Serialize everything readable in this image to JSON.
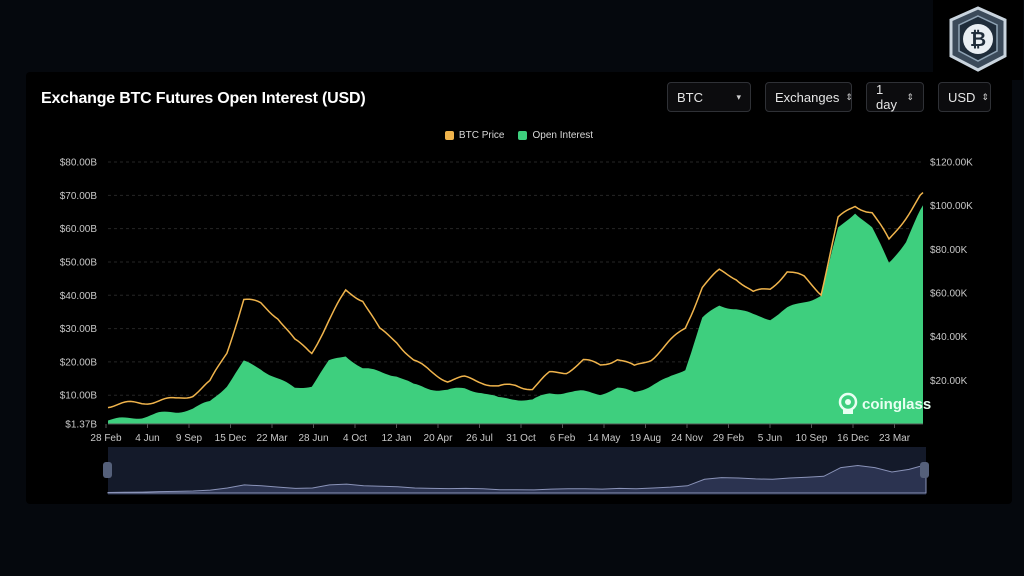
{
  "header": {
    "title": "Exchange BTC Futures Open Interest (USD)",
    "controls": [
      {
        "label": "BTC",
        "icon": "caret-down-icon"
      },
      {
        "label": "Exchanges",
        "icon": "updown-chevron-icon"
      },
      {
        "label": "1 day",
        "icon": "updown-chevron-icon"
      },
      {
        "label": "USD",
        "icon": "updown-chevron-icon"
      }
    ]
  },
  "watermark": {
    "text": "coinglass",
    "icon": "coinglass-logo-icon"
  },
  "logo": {
    "icon": "bitcoin-badge-icon",
    "symbol": "₿"
  },
  "colors": {
    "price": "#f0b44c",
    "oi": "#3ecf7e",
    "background": "#000000",
    "navigator": "#2b3350"
  },
  "chart_data": {
    "type": "area",
    "title": "Exchange BTC Futures Open Interest (USD)",
    "legend_position": "top-center",
    "grid": "horizontal-dashed",
    "x_ticks": [
      "28 Feb",
      "4 Jun",
      "9 Sep",
      "15 Dec",
      "22 Mar",
      "28 Jun",
      "4 Oct",
      "12 Jan",
      "20 Apr",
      "26 Jul",
      "31 Oct",
      "6 Feb",
      "14 May",
      "19 Aug",
      "24 Nov",
      "29 Feb",
      "5 Jun",
      "10 Sep",
      "16 Dec",
      "23 Mar"
    ],
    "y_left_ticks": [
      "$1.37B",
      "$10.00B",
      "$20.00B",
      "$30.00B",
      "$40.00B",
      "$50.00B",
      "$60.00B",
      "$70.00B",
      "$80.00B"
    ],
    "y_left_tick_values": [
      1.37,
      10,
      20,
      30,
      40,
      50,
      60,
      70,
      80
    ],
    "y_left_range": [
      1.37,
      80
    ],
    "y_right_ticks": [
      "$20.00K",
      "$40.00K",
      "$60.00K",
      "$80.00K",
      "$100.00K",
      "$120.00K"
    ],
    "y_right_tick_values": [
      20,
      40,
      60,
      80,
      100,
      120
    ],
    "y_right_range": [
      0,
      120
    ],
    "series": [
      {
        "name": "BTC Price",
        "axis": "right",
        "values": [
          8.5,
          9.2,
          9.8,
          10.7,
          11.3,
          13.5,
          19,
          33,
          57,
          55,
          49,
          38,
          33,
          47,
          61,
          57,
          43,
          38,
          29,
          24,
          20,
          21,
          19.5,
          17,
          17.5,
          16.5,
          23,
          24,
          29,
          27,
          30,
          26,
          30,
          37,
          44,
          63,
          70,
          67,
          60,
          62,
          70,
          67,
          60,
          94,
          100,
          97,
          84,
          95,
          106
        ]
      },
      {
        "name": "Open Interest",
        "axis": "left",
        "values": [
          2.5,
          3.0,
          3.5,
          4.5,
          5.0,
          6.0,
          8.0,
          13.0,
          20.0,
          18.0,
          15.0,
          12.0,
          13.0,
          20.0,
          22.0,
          18.0,
          17.0,
          16.0,
          13.0,
          12.0,
          11.5,
          12.0,
          11.0,
          9.0,
          9.0,
          8.5,
          10.5,
          11.0,
          11.0,
          10.5,
          12.0,
          11.0,
          13.0,
          15.0,
          18.0,
          33.0,
          37.0,
          36.0,
          34.0,
          33.0,
          36.0,
          38.0,
          40.0,
          60.0,
          65.0,
          60.0,
          50.0,
          56.0,
          67.0
        ]
      }
    ],
    "x_ticks_per_point": 2.5
  }
}
